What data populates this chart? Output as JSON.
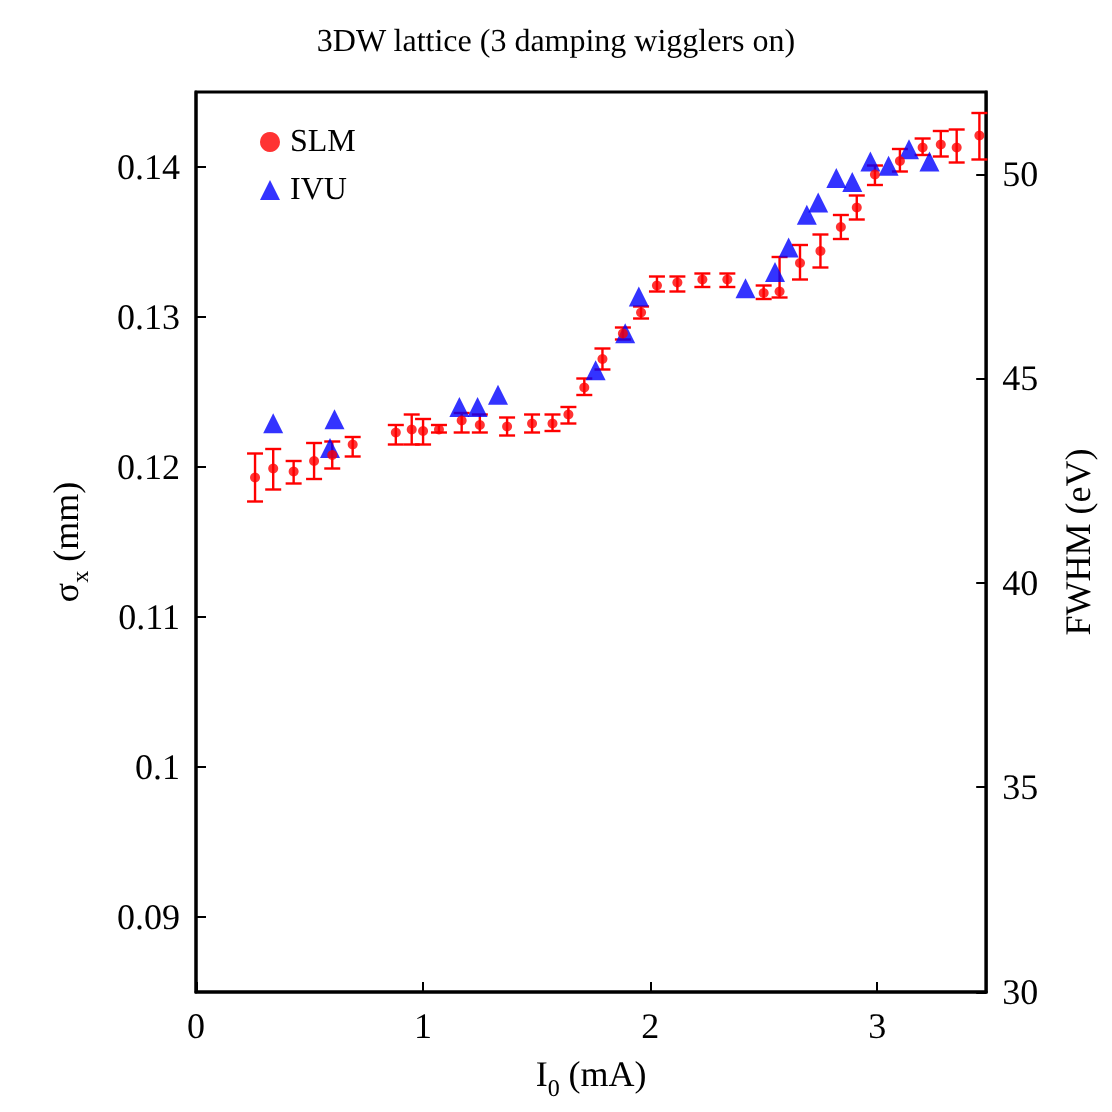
{
  "chart_data": {
    "type": "scatter",
    "title": "3DW lattice (3 damping wigglers on)",
    "xlabel": "I$_{0}$ (mA)",
    "ylabel": "σ$_{x}$ (mm)",
    "y2label": "FWHM (eV)",
    "xlim": [
      0,
      3.48
    ],
    "xticks": [
      0,
      1,
      2,
      3
    ],
    "ylim": [
      0.085,
      0.145
    ],
    "yticks": [
      0.09,
      0.1,
      0.11,
      0.12,
      0.13,
      0.14
    ],
    "y2lim": [
      30,
      52
    ],
    "y2ticks": [
      30,
      35,
      40,
      45,
      50
    ],
    "legend": "top left",
    "series": [
      {
        "name": "SLM",
        "color": "#ff0000",
        "marker": "circle",
        "axis": "y",
        "x": [
          0.26,
          0.34,
          0.43,
          0.52,
          0.6,
          0.69,
          0.88,
          0.95,
          1.0,
          1.07,
          1.17,
          1.25,
          1.37,
          1.48,
          1.57,
          1.64,
          1.71,
          1.79,
          1.88,
          1.96,
          2.03,
          2.12,
          2.23,
          2.34,
          2.5,
          2.57,
          2.66,
          2.75,
          2.84,
          2.91,
          2.99,
          3.1,
          3.2,
          3.28,
          3.35,
          3.45
        ],
        "values": [
          0.1193,
          0.1199,
          0.1197,
          0.1204,
          0.1208,
          0.1215,
          0.1223,
          0.1225,
          0.1224,
          0.1225,
          0.1231,
          0.1228,
          0.1227,
          0.1229,
          0.1229,
          0.1235,
          0.1253,
          0.1272,
          0.1289,
          0.1303,
          0.1321,
          0.1323,
          0.1325,
          0.1325,
          0.1316,
          0.1317,
          0.1336,
          0.1344,
          0.136,
          0.1373,
          0.1395,
          0.1404,
          0.1413,
          0.1415,
          0.1413,
          0.1421
        ],
        "errors": [
          [
            0.1177,
            0.1209
          ],
          [
            0.1185,
            0.1212
          ],
          [
            0.1189,
            0.1204
          ],
          [
            0.1192,
            0.1216
          ],
          [
            0.1199,
            0.1217
          ],
          [
            0.1207,
            0.122
          ],
          [
            0.1215,
            0.1228
          ],
          [
            0.1215,
            0.1235
          ],
          [
            0.1215,
            0.1232
          ],
          [
            0.1223,
            0.1228
          ],
          [
            0.1223,
            0.1236
          ],
          [
            0.1223,
            0.1235
          ],
          [
            0.1221,
            0.1233
          ],
          [
            0.1223,
            0.1235
          ],
          [
            0.1224,
            0.1235
          ],
          [
            0.1229,
            0.124
          ],
          [
            0.1248,
            0.1259
          ],
          [
            0.1265,
            0.1279
          ],
          [
            0.1285,
            0.1293
          ],
          [
            0.1299,
            0.1307
          ],
          [
            0.1317,
            0.1327
          ],
          [
            0.1317,
            0.1327
          ],
          [
            0.132,
            0.1329
          ],
          [
            0.132,
            0.1329
          ],
          [
            0.1312,
            0.1321
          ],
          [
            0.1313,
            0.134
          ],
          [
            0.1325,
            0.1348
          ],
          [
            0.1333,
            0.1355
          ],
          [
            0.1352,
            0.1368
          ],
          [
            0.1365,
            0.1381
          ],
          [
            0.1388,
            0.1401
          ],
          [
            0.1397,
            0.1412
          ],
          [
            0.1408,
            0.1419
          ],
          [
            0.1407,
            0.1424
          ],
          [
            0.1403,
            0.1425
          ],
          [
            0.1405,
            0.1436
          ]
        ]
      },
      {
        "name": "IVU",
        "color": "#0000ff",
        "marker": "triangle",
        "axis": "y2",
        "x": [
          0.34,
          0.59,
          0.61,
          1.16,
          1.24,
          1.33,
          1.76,
          1.89,
          1.95,
          2.42,
          2.55,
          2.61,
          2.69,
          2.74,
          2.82,
          2.89,
          2.97,
          3.05,
          3.14,
          3.23
        ],
        "values": [
          43.9,
          43.3,
          44.0,
          44.3,
          44.3,
          44.6,
          45.2,
          46.1,
          47.0,
          47.2,
          47.6,
          48.2,
          49.0,
          49.3,
          49.9,
          49.8,
          50.3,
          50.2,
          50.6,
          50.3
        ]
      }
    ]
  }
}
